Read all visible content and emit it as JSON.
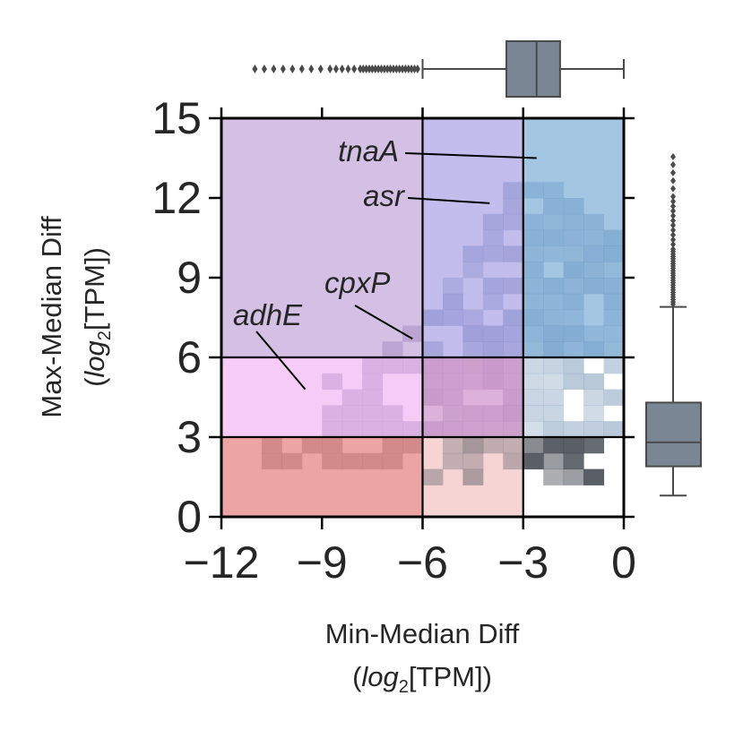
{
  "chart_data": {
    "type": "heatmap",
    "xlabel": "Min-Median Diff",
    "ylabel": "Max-Median Diff",
    "units_label": {
      "prefix": "(",
      "italic": "log",
      "sub": "2",
      "suffix": "[TPM])"
    },
    "xlim": [
      -12,
      0
    ],
    "ylim": [
      0,
      15
    ],
    "x_ticks": [
      -12,
      -9,
      -6,
      -3,
      0
    ],
    "x_tick_labels": [
      "−12",
      "−9",
      "−6",
      "−3",
      "0"
    ],
    "y_ticks": [
      0,
      3,
      6,
      9,
      12,
      15
    ],
    "y_tick_labels": [
      "0",
      "3",
      "6",
      "9",
      "12",
      "15"
    ],
    "region_boundaries": {
      "x": [
        -6,
        -3
      ],
      "y": [
        3,
        6
      ]
    },
    "regions": [
      {
        "x": [
          -12,
          -6
        ],
        "y": [
          6,
          15
        ],
        "color": "#d3c0e4"
      },
      {
        "x": [
          -6,
          -3
        ],
        "y": [
          6,
          15
        ],
        "color": "#c2bdec"
      },
      {
        "x": [
          -3,
          0
        ],
        "y": [
          6,
          15
        ],
        "color": "#a3c6e2"
      },
      {
        "x": [
          -12,
          -6
        ],
        "y": [
          3,
          6
        ],
        "color": "#f7cbf7"
      },
      {
        "x": [
          -6,
          -3
        ],
        "y": [
          3,
          6
        ],
        "color": "#dcb2dc"
      },
      {
        "x": [
          -3,
          0
        ],
        "y": [
          3,
          6
        ],
        "color": "#ffffff"
      },
      {
        "x": [
          -12,
          -6
        ],
        "y": [
          0,
          3
        ],
        "color": "#eca4a4"
      },
      {
        "x": [
          -6,
          -3
        ],
        "y": [
          0,
          3
        ],
        "color": "#f7d4d4"
      },
      {
        "x": [
          -3,
          0
        ],
        "y": [
          0,
          3
        ],
        "color": "#ffffff"
      }
    ],
    "heatmap_bins": {
      "x_bin_width": 0.6,
      "y_bin_width": 0.6
    },
    "annotations": [
      {
        "label": "tnaA",
        "point": [
          -2.6,
          13.5
        ]
      },
      {
        "label": "asr",
        "point": [
          -4.0,
          11.8
        ]
      },
      {
        "label": "cpxP",
        "point": [
          -6.3,
          6.7
        ]
      },
      {
        "label": "adhE",
        "point": [
          -9.5,
          4.8
        ]
      }
    ],
    "marginal_x_boxplot": {
      "q1": -3.5,
      "median": -2.6,
      "q3": -1.9,
      "whisker_low": -6.0,
      "whisker_high": 0.0,
      "outliers_from": -11.0
    },
    "marginal_y_boxplot": {
      "q1": 1.9,
      "median": 2.8,
      "q3": 4.3,
      "whisker_low": 0.8,
      "whisker_high": 7.9,
      "outliers_to": 13.6
    },
    "colors": {
      "boxplot_fill": "#7a8694",
      "boxplot_edge": "#4a4a4a",
      "frame": "#000000",
      "text": "#262626"
    }
  }
}
